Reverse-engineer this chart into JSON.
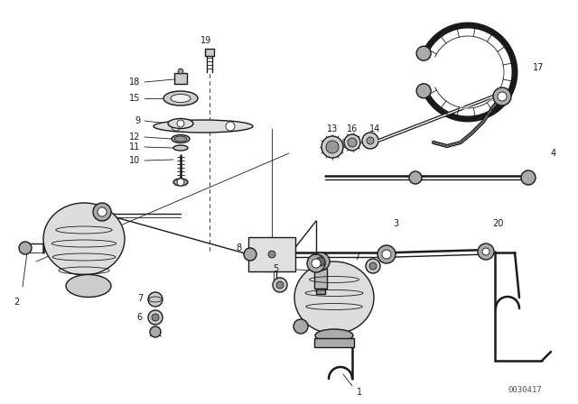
{
  "bg_color": "#ffffff",
  "fig_width": 6.4,
  "fig_height": 4.48,
  "dpi": 100,
  "watermark": "0030417",
  "line_color": "#1a1a1a",
  "label_fontsize": 7.0,
  "watermark_fontsize": 6.5
}
